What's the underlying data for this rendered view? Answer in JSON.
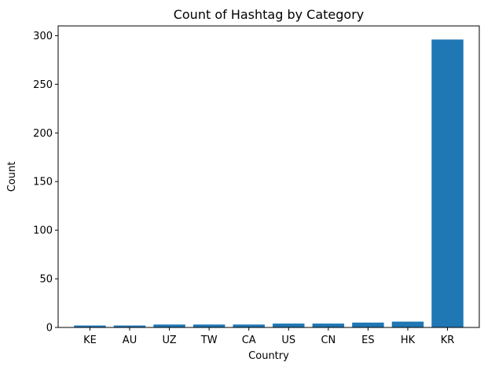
{
  "chart_data": {
    "type": "bar",
    "title": "Count of Hashtag by Category",
    "xlabel": "Country",
    "ylabel": "Count",
    "categories": [
      "KE",
      "AU",
      "UZ",
      "TW",
      "CA",
      "US",
      "CN",
      "ES",
      "HK",
      "KR"
    ],
    "values": [
      2,
      2,
      3,
      3,
      3,
      4,
      4,
      5,
      6,
      296
    ],
    "ylim": [
      0,
      310
    ],
    "yticks": [
      0,
      50,
      100,
      150,
      200,
      250,
      300
    ],
    "grid": false,
    "bar_color": "#1f77b4"
  }
}
